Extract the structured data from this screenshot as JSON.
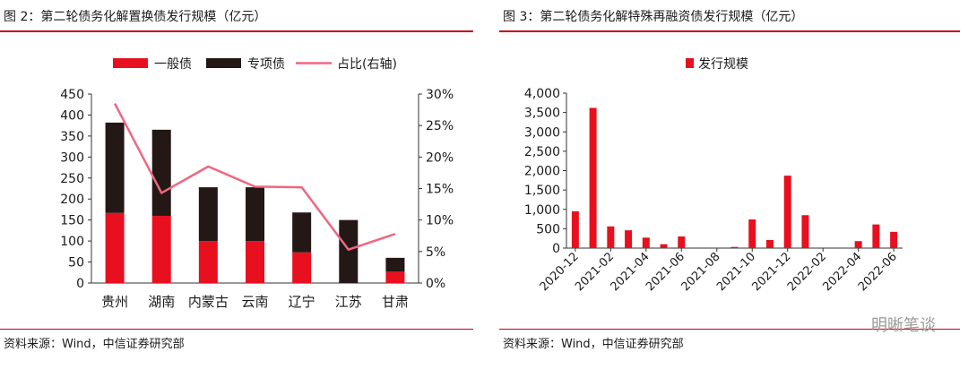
{
  "left_panel": {
    "title": "图 2：第二轮债务化解置换债发行规模（亿元）",
    "source": "资料来源：Wind，中信证券研究部"
  },
  "right_panel": {
    "title": "图 3：第二轮债务化解特殊再融资债发行规模（亿元）",
    "source": "资料来源：Wind，中信证券研究部"
  },
  "watermark": "明晰笔谈",
  "colors": {
    "red": "#e8101e",
    "dark": "#231815",
    "pink": "#f06680",
    "rule": "#c00010"
  },
  "chart_data": [
    {
      "type": "bar",
      "stacked": true,
      "categories": [
        "贵州",
        "湖南",
        "内蒙古",
        "云南",
        "辽宁",
        "江苏",
        "甘肃"
      ],
      "series": [
        {
          "name": "一般债",
          "values": [
            167,
            160,
            100,
            100,
            73,
            0,
            27
          ]
        },
        {
          "name": "专项债",
          "values": [
            215,
            205,
            128,
            128,
            95,
            150,
            33
          ]
        }
      ],
      "line_series": {
        "name": "占比(右轴)",
        "values": [
          28.5,
          14.3,
          18.5,
          15.3,
          15.2,
          5.3,
          7.8
        ]
      },
      "y_ticks": [
        "0",
        "50",
        "100",
        "150",
        "200",
        "250",
        "300",
        "350",
        "400",
        "450"
      ],
      "y2_ticks": [
        "0%",
        "5%",
        "10%",
        "15%",
        "20%",
        "25%",
        "30%"
      ],
      "ylim": [
        0,
        450
      ],
      "y2lim": [
        0,
        30
      ],
      "legend": "top"
    },
    {
      "type": "bar",
      "categories": [
        "2020-12",
        "2021-01",
        "2021-02",
        "2021-03",
        "2021-04",
        "2021-05",
        "2021-06",
        "2021-07",
        "2021-08",
        "2021-09",
        "2021-10",
        "2021-11",
        "2021-12",
        "2022-01",
        "2022-02",
        "2022-03",
        "2022-04",
        "2022-05",
        "2022-06"
      ],
      "x_tick_labels": [
        "2020-12",
        "2021-02",
        "2021-04",
        "2021-06",
        "2021-08",
        "2021-10",
        "2021-12",
        "2022-02",
        "2022-04",
        "2022-06"
      ],
      "series": [
        {
          "name": "发行规模",
          "values": [
            950,
            3620,
            560,
            460,
            270,
            100,
            300,
            0,
            0,
            30,
            740,
            210,
            1870,
            850,
            0,
            0,
            180,
            610,
            420
          ]
        }
      ],
      "y_ticks": [
        "0",
        "500",
        "1,000",
        "1,500",
        "2,000",
        "2,500",
        "3,000",
        "3,500",
        "4,000"
      ],
      "ylim": [
        0,
        4000
      ],
      "legend": "top"
    }
  ]
}
